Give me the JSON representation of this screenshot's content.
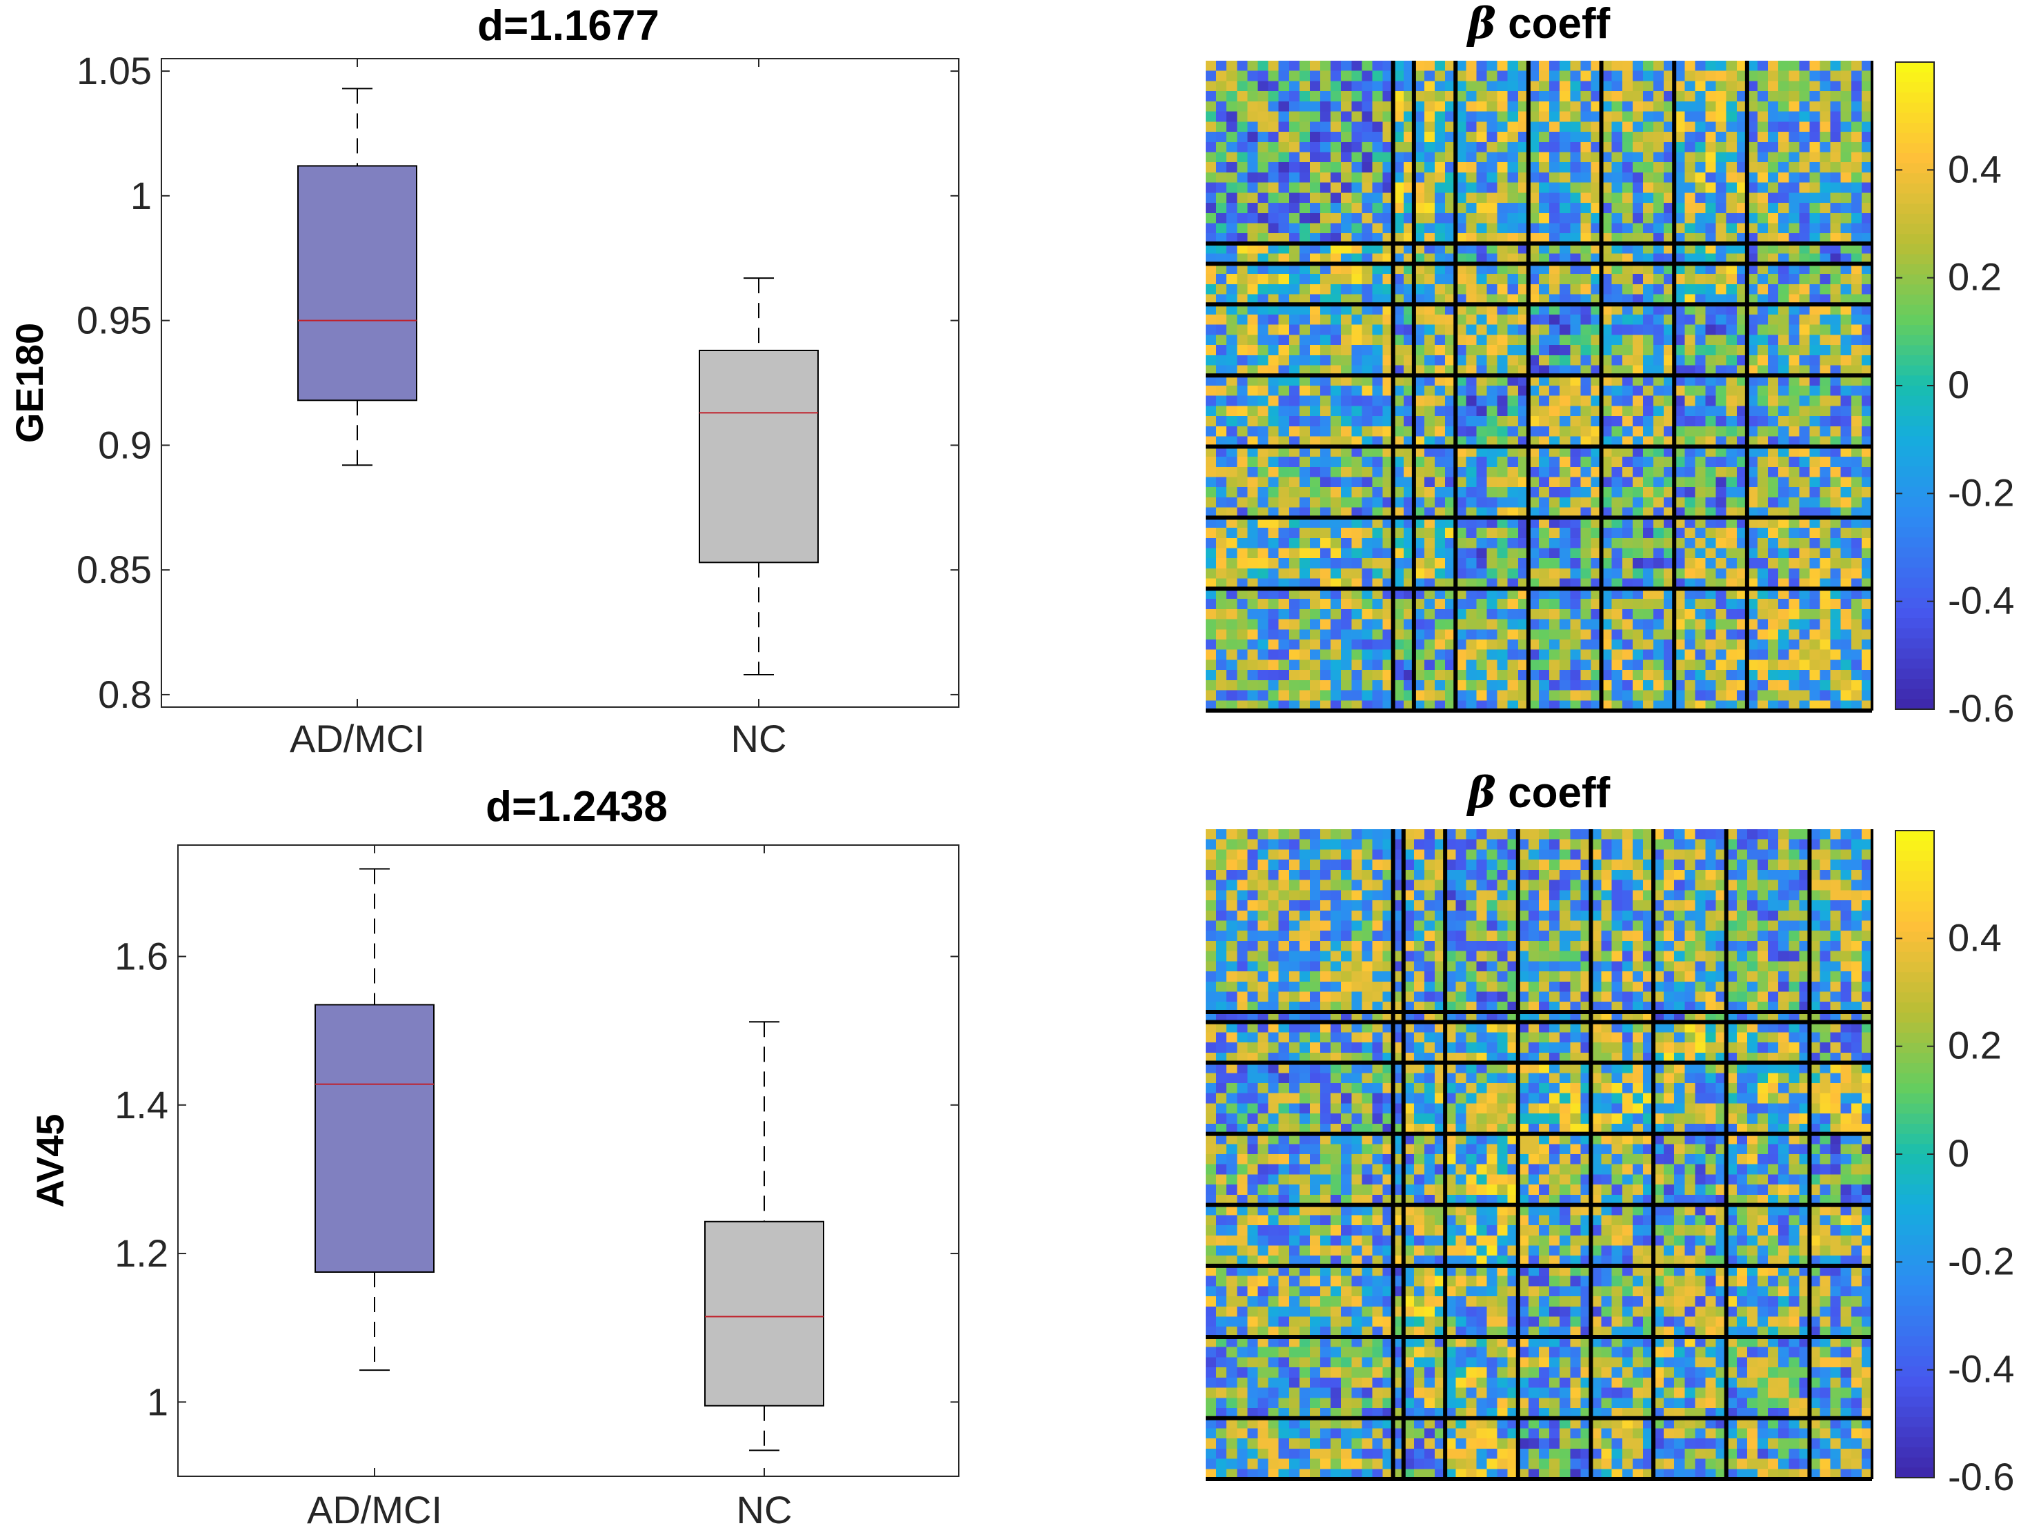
{
  "chart_data": [
    {
      "type": "box",
      "title": "d=1.1677",
      "ylabel": "GE180",
      "xlabel": "",
      "categories": [
        "AD/MCI",
        "NC"
      ],
      "ylim": [
        0.795,
        1.055
      ],
      "yticks": [
        0.8,
        0.85,
        0.9,
        0.95,
        1,
        1.05
      ],
      "ytick_labels": [
        "0.8",
        "0.85",
        "0.9",
        "0.95",
        "1",
        "1.05"
      ],
      "boxes": [
        {
          "group": "AD/MCI",
          "whisker_low": 0.892,
          "q1": 0.918,
          "median": 0.95,
          "q3": 1.012,
          "whisker_high": 1.043,
          "color": "#8080c0"
        },
        {
          "group": "NC",
          "whisker_low": 0.808,
          "q1": 0.853,
          "median": 0.913,
          "q3": 0.938,
          "whisker_high": 0.967,
          "color": "#c0c0c0"
        }
      ]
    },
    {
      "type": "heatmap",
      "title": "coeff",
      "title_symbol": "β",
      "size": 64,
      "separators": [
        18,
        20,
        24,
        31,
        38,
        45,
        52
      ],
      "colormap": "parula",
      "clim": [
        -0.6,
        0.6
      ],
      "colorbar_ticks": [
        -0.6,
        -0.4,
        -0.2,
        0,
        0.2,
        0.4
      ],
      "colorbar_labels": [
        "-0.6",
        "-0.4",
        "-0.2",
        "0",
        "0.2",
        "0.4"
      ]
    },
    {
      "type": "box",
      "title": "d=1.2438",
      "ylabel": "AV45",
      "xlabel": "",
      "categories": [
        "AD/MCI",
        "NC"
      ],
      "ylim": [
        0.9,
        1.75
      ],
      "yticks": [
        1,
        1.2,
        1.4,
        1.6
      ],
      "ytick_labels": [
        "1",
        "1.2",
        "1.4",
        "1.6"
      ],
      "boxes": [
        {
          "group": "AD/MCI",
          "whisker_low": 1.043,
          "q1": 1.175,
          "median": 1.428,
          "q3": 1.535,
          "whisker_high": 1.718,
          "color": "#8080c0"
        },
        {
          "group": "NC",
          "whisker_low": 0.935,
          "q1": 0.995,
          "median": 1.115,
          "q3": 1.243,
          "whisker_high": 1.512,
          "color": "#c0c0c0"
        }
      ]
    },
    {
      "type": "heatmap",
      "title": "coeff",
      "title_symbol": "β",
      "size": 64,
      "separators": [
        18,
        19,
        23,
        30,
        37,
        43,
        50,
        58
      ],
      "colormap": "parula",
      "clim": [
        -0.6,
        0.6
      ],
      "colorbar_ticks": [
        -0.6,
        -0.4,
        -0.2,
        0,
        0.2,
        0.4
      ],
      "colorbar_labels": [
        "-0.6",
        "-0.4",
        "-0.2",
        "0",
        "0.2",
        "0.4"
      ]
    }
  ],
  "colors": {
    "median": "#c0202a",
    "axis": "#262626",
    "separator": "#000000"
  }
}
